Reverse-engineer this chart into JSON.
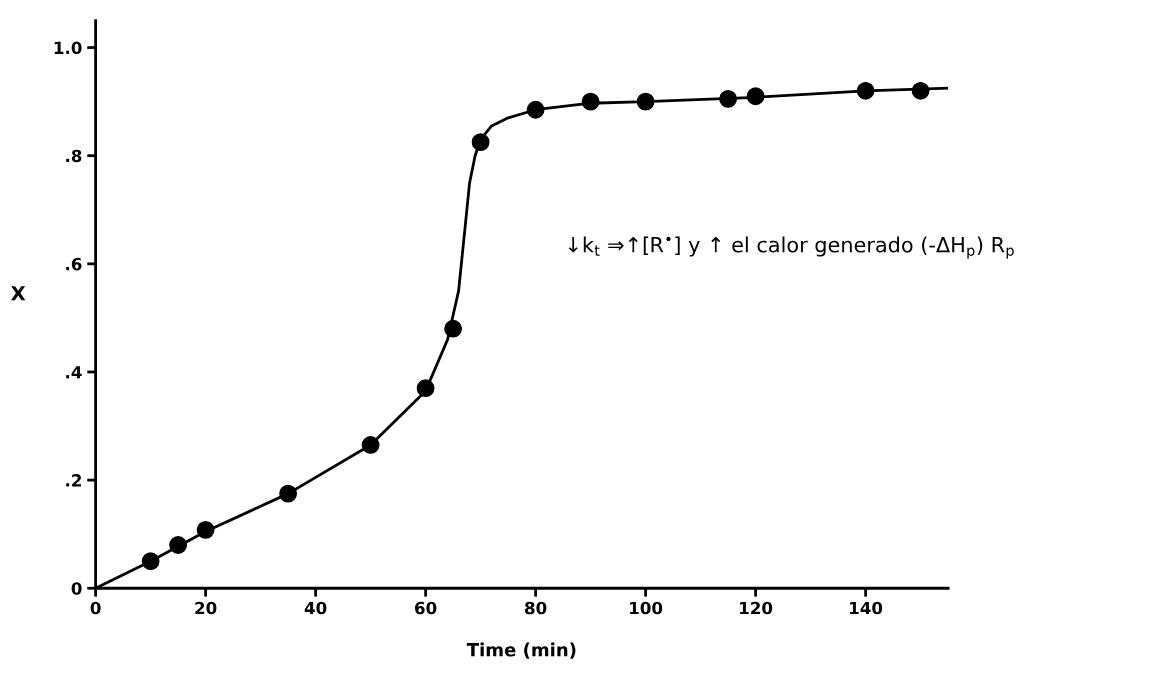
{
  "chart_data": {
    "type": "scatter",
    "xlabel": "Time (min)",
    "ylabel": "X",
    "xlim": [
      0,
      155
    ],
    "ylim": [
      0,
      1.05
    ],
    "xticks": [
      0,
      20,
      40,
      60,
      80,
      100,
      120,
      140
    ],
    "yticks": [
      {
        "value": 0,
        "label": "0"
      },
      {
        "value": 0.2,
        "label": ".2"
      },
      {
        "value": 0.4,
        "label": ".4"
      },
      {
        "value": 0.6,
        "label": ".6"
      },
      {
        "value": 0.8,
        "label": ".8"
      },
      {
        "value": 1.0,
        "label": "1.0"
      }
    ],
    "grid": false,
    "legend": false,
    "series": [
      {
        "color": "#000000",
        "marker": "circle",
        "x": [
          10,
          15,
          20,
          35,
          50,
          60,
          65,
          70,
          80,
          90,
          100,
          115,
          120,
          140,
          150
        ],
        "values": [
          0.05,
          0.08,
          0.108,
          0.175,
          0.265,
          0.37,
          0.48,
          0.825,
          0.885,
          0.9,
          0.9,
          0.905,
          0.91,
          0.92,
          0.92
        ]
      },
      {
        "type": "line",
        "color": "#000000",
        "marker": "none",
        "line_style": "solid",
        "x": [
          0,
          10,
          20,
          35,
          50,
          60,
          64,
          66,
          67,
          68,
          69,
          70,
          72,
          75,
          80,
          90,
          100,
          120,
          140,
          155
        ],
        "values": [
          0,
          0.05,
          0.105,
          0.175,
          0.265,
          0.365,
          0.46,
          0.55,
          0.65,
          0.75,
          0.8,
          0.83,
          0.855,
          0.87,
          0.885,
          0.897,
          0.9,
          0.908,
          0.92,
          0.925
        ]
      }
    ],
    "annotations": [
      "↓k$_{t}$ ⇒↑[R$^{•}$] y ↑ el calor generado (-ΔH$_{p}$) R$_{p}$"
    ]
  }
}
